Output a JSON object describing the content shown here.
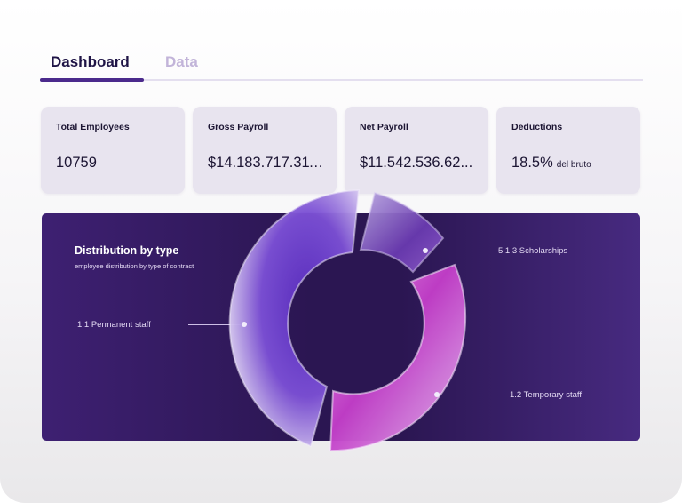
{
  "tabs": [
    {
      "label": "Dashboard",
      "active": true
    },
    {
      "label": "Data",
      "active": false
    }
  ],
  "kpis": [
    {
      "label": "Total Employees",
      "value": "10759",
      "suffix": ""
    },
    {
      "label": "Gross Payroll",
      "value": "$14.183.717.311,...",
      "suffix": ""
    },
    {
      "label": "Net Payroll",
      "value": "$11.542.536.62...",
      "suffix": ""
    },
    {
      "label": "Deductions",
      "value": "18.5%",
      "suffix": "del bruto"
    }
  ],
  "distribution": {
    "title": "Distribution by type",
    "subtitle": "employee distribution by type of contract",
    "labels": {
      "permanent": "1.1 Permanent staff",
      "scholarships": "5.1.3 Scholarships",
      "temporary": "1.2 Temporary staff"
    }
  },
  "colors": {
    "accent": "#4b2a8c",
    "panel": "#2b1652",
    "permanent": "#6a3bc4",
    "temporary": "#c23ec8",
    "scholarships": "#7a4bb8"
  }
}
